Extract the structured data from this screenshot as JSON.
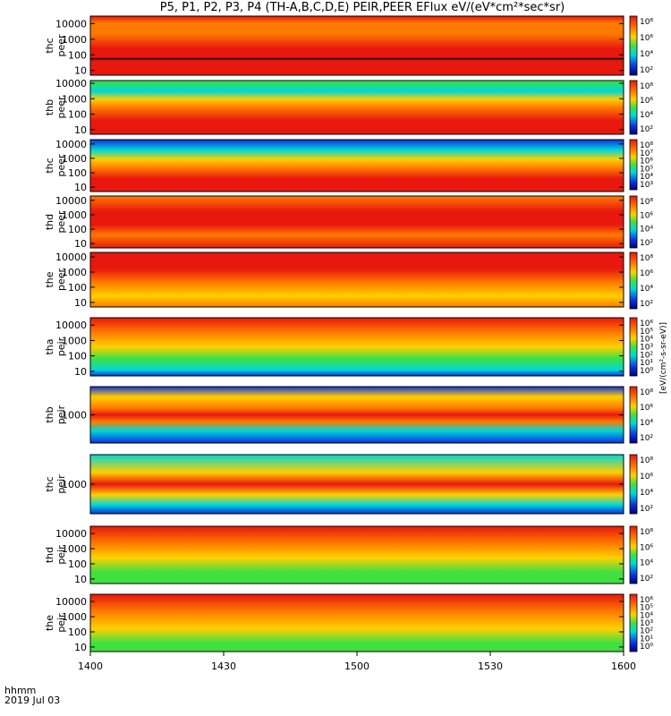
{
  "title": "P5, P1, P2, P3, P4 (TH-A,B,C,D,E) PEIR,PEER EFlux eV/(eV*cm²*sec*sr)",
  "footer": {
    "time_label": "hhmm",
    "date_label": "2019 Jul 03"
  },
  "colorbar_unit_label": "[eV/(cm²-s-sr-eV)]",
  "colors": {
    "hot": "#e8180e",
    "warm": "#ff7a00",
    "mid": "#ffd000",
    "green": "#40e040",
    "cyan": "#00d8d8",
    "blue": "#1030e0",
    "low": "#000080"
  },
  "chart_data": {
    "type": "heatmap",
    "xaxis": {
      "range": [
        "14:00",
        "16:00"
      ],
      "tick_labels": [
        "1400",
        "1430",
        "1500",
        "1530",
        "1600"
      ]
    },
    "panels": [
      {
        "name": "thc peer",
        "label_1": "thc",
        "label_2": "peer",
        "ylog": true,
        "ylim": [
          5,
          30000
        ],
        "yticks": [
          "10000",
          "1000",
          "100",
          "10"
        ],
        "colorbar_ticks": [
          "10⁸",
          "10⁶",
          "10⁴",
          "10²"
        ]
      },
      {
        "name": "thb peer",
        "label_1": "thb",
        "label_2": "peer",
        "ylog": true,
        "ylim": [
          5,
          15000
        ],
        "yticks": [
          "10000",
          "1000",
          "100",
          "10"
        ],
        "colorbar_ticks": [
          "10⁸",
          "10⁶",
          "10⁴",
          "10²"
        ]
      },
      {
        "name": "thc peer 2",
        "label_1": "thc",
        "label_2": "peer",
        "ylog": true,
        "ylim": [
          5,
          20000
        ],
        "yticks": [
          "10000",
          "1000",
          "100",
          "10"
        ],
        "colorbar_ticks": [
          "10⁸",
          "10⁷",
          "10⁶",
          "10⁵",
          "10⁴",
          "10³"
        ]
      },
      {
        "name": "thd peer",
        "label_1": "thd",
        "label_2": "peer",
        "ylog": true,
        "ylim": [
          5,
          20000
        ],
        "yticks": [
          "10000",
          "1000",
          "100",
          "10"
        ],
        "colorbar_ticks": [
          "10⁸",
          "10⁶",
          "10⁴",
          "10²"
        ]
      },
      {
        "name": "the peer",
        "label_1": "the",
        "label_2": "peer",
        "ylog": true,
        "ylim": [
          5,
          20000
        ],
        "yticks": [
          "10000",
          "1000",
          "100",
          "10"
        ],
        "colorbar_ticks": [
          "10⁸",
          "10⁶",
          "10⁴",
          "10²"
        ]
      },
      {
        "name": "tha peir",
        "label_1": "tha",
        "label_2": "peir",
        "ylog": true,
        "ylim": [
          5,
          30000
        ],
        "yticks": [
          "10000",
          "1000",
          "100",
          "10"
        ],
        "colorbar_ticks": [
          "10⁶",
          "10⁵",
          "10⁴",
          "10³",
          "10²",
          "10¹",
          "10⁰"
        ]
      },
      {
        "name": "thb peir",
        "label_1": "thb",
        "label_2": "peir",
        "ylog": true,
        "ylim": [
          100,
          10000
        ],
        "yticks": [
          "1000"
        ],
        "colorbar_ticks": [
          "10⁸",
          "10⁶",
          "10⁴",
          "10²"
        ]
      },
      {
        "name": "thc peir",
        "label_1": "thc",
        "label_2": "peir",
        "ylog": true,
        "ylim": [
          100,
          10000
        ],
        "yticks": [
          "1000"
        ],
        "colorbar_ticks": [
          "10⁸",
          "10⁶",
          "10⁴",
          "10²"
        ]
      },
      {
        "name": "thd peir",
        "label_1": "thd",
        "label_2": "peir",
        "ylog": true,
        "ylim": [
          5,
          30000
        ],
        "yticks": [
          "10000",
          "1000",
          "100",
          "10"
        ],
        "colorbar_ticks": [
          "10⁸",
          "10⁶",
          "10⁴",
          "10²"
        ]
      },
      {
        "name": "the peir",
        "label_1": "the",
        "label_2": "peir",
        "ylog": true,
        "ylim": [
          5,
          30000
        ],
        "yticks": [
          "10000",
          "1000",
          "100",
          "10"
        ],
        "colorbar_ticks": [
          "10⁶",
          "10⁵",
          "10⁴",
          "10³",
          "10²",
          "10¹",
          "10⁰"
        ]
      }
    ]
  }
}
